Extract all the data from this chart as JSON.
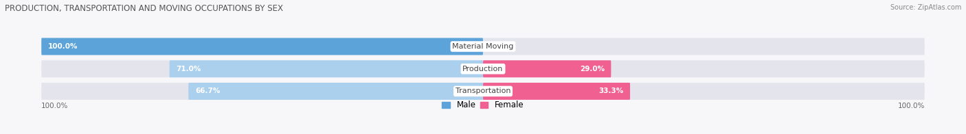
{
  "title": "PRODUCTION, TRANSPORTATION AND MOVING OCCUPATIONS BY SEX",
  "source": "Source: ZipAtlas.com",
  "categories": [
    "Material Moving",
    "Production",
    "Transportation"
  ],
  "male_values": [
    100.0,
    71.0,
    66.7
  ],
  "female_values": [
    0.0,
    29.0,
    33.3
  ],
  "male_color_dark": "#5ba3d9",
  "male_color_light": "#aad0ee",
  "female_color_dark": "#f06090",
  "female_color_light": "#f8b8cc",
  "bar_bg_color": "#e4e4ec",
  "background_color": "#f7f7fa",
  "axis_label_left": "100.0%",
  "axis_label_right": "100.0%",
  "legend_male": "Male",
  "legend_female": "Female",
  "figsize": [
    14.06,
    1.96
  ],
  "dpi": 100
}
